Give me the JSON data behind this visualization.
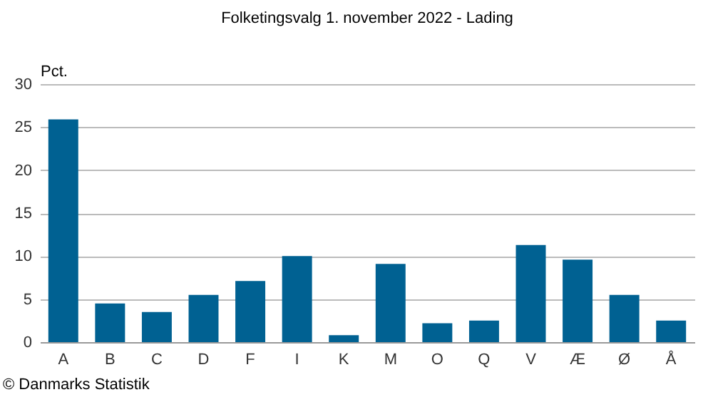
{
  "chart_data": {
    "type": "bar",
    "title": "Folketingsvalg 1. november 2022 - Lading",
    "ylabel": "Pct.",
    "categories": [
      "A",
      "B",
      "C",
      "D",
      "F",
      "I",
      "K",
      "M",
      "O",
      "Q",
      "V",
      "Æ",
      "Ø",
      "Å"
    ],
    "values": [
      25.9,
      4.5,
      3.5,
      5.5,
      7.1,
      10.0,
      0.8,
      9.1,
      2.2,
      2.5,
      11.3,
      9.6,
      5.5,
      2.5
    ],
    "color": "#006192",
    "ylim": [
      0,
      30
    ],
    "yticks": [
      0,
      5,
      10,
      15,
      20,
      25,
      30
    ],
    "grid": "y",
    "annotations": [
      "© Danmarks Statistik"
    ]
  }
}
